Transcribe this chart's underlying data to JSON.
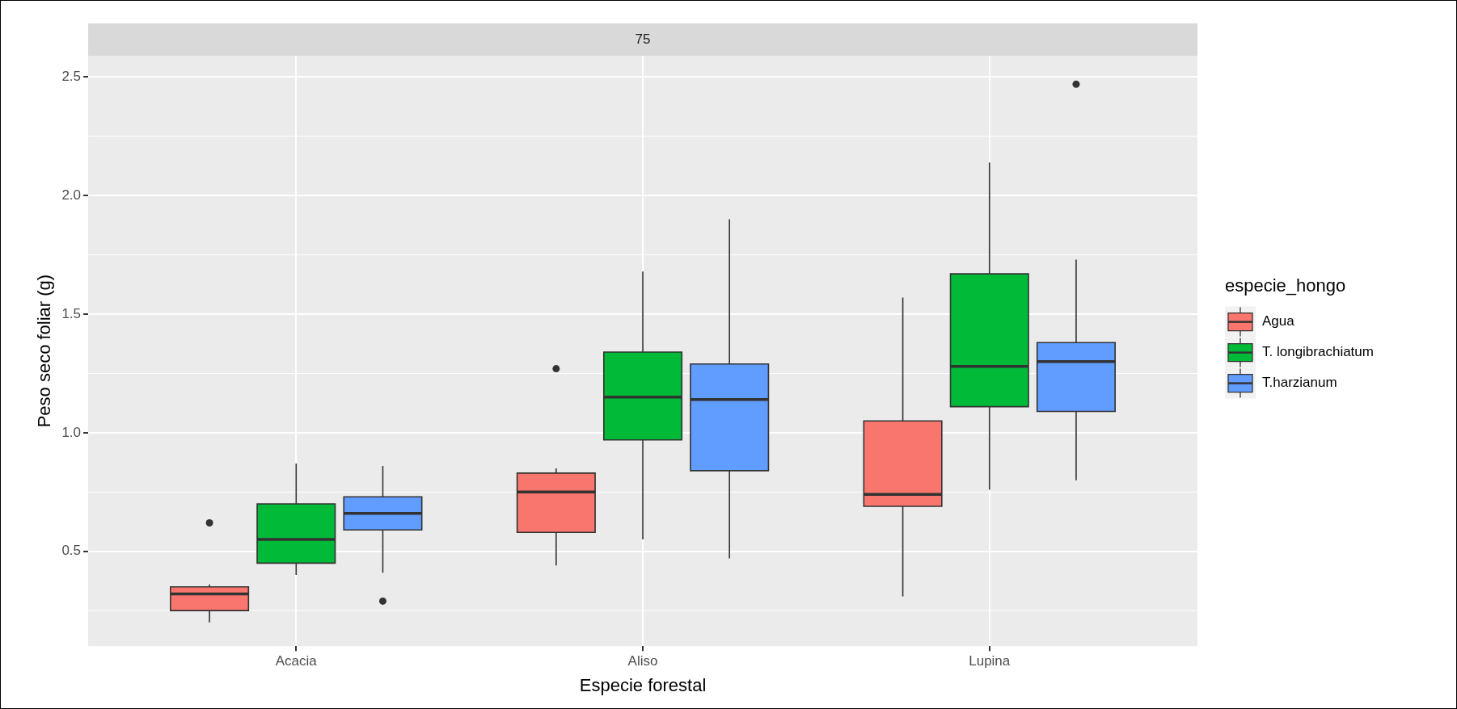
{
  "chart_data": {
    "type": "box",
    "subtitle": "75",
    "xlabel": "Especie forestal",
    "ylabel": "Peso seco foliar (g)",
    "legend_title": "especie_hongo",
    "categories": [
      "Acacia",
      "Aliso",
      "Lupina"
    ],
    "ylim": [
      0.1,
      2.59
    ],
    "yticks": [
      0.5,
      {
        "value": 1,
        "label": "1.0"
      },
      1.5,
      {
        "value": 2,
        "label": "2.0"
      },
      2.5
    ],
    "grid": true,
    "legend": "right",
    "series": [
      {
        "name": "Agua",
        "color": "#f8766d",
        "boxes": [
          {
            "low": 0.2,
            "q1": 0.25,
            "median": 0.32,
            "q3": 0.35,
            "high": 0.36,
            "outliers": [
              0.62
            ]
          },
          {
            "low": 0.44,
            "q1": 0.58,
            "median": 0.75,
            "q3": 0.83,
            "high": 0.85,
            "outliers": [
              1.27
            ]
          },
          {
            "low": 0.31,
            "q1": 0.69,
            "median": 0.74,
            "q3": 1.05,
            "high": 1.57
          }
        ]
      },
      {
        "name": "T. longibrachiatum",
        "color": "#00ba38",
        "boxes": [
          {
            "low": 0.4,
            "q1": 0.45,
            "median": 0.55,
            "q3": 0.7,
            "high": 0.87
          },
          {
            "low": 0.55,
            "q1": 0.97,
            "median": 1.15,
            "q3": 1.34,
            "high": 1.68
          },
          {
            "low": 0.76,
            "q1": 1.11,
            "median": 1.28,
            "q3": 1.67,
            "high": 2.14
          }
        ]
      },
      {
        "name": "T.harzianum",
        "color": "#619cff",
        "boxes": [
          {
            "low": 0.41,
            "q1": 0.59,
            "median": 0.66,
            "q3": 0.73,
            "high": 0.86,
            "outliers": [
              0.29
            ]
          },
          {
            "low": 0.47,
            "q1": 0.84,
            "median": 1.14,
            "q3": 1.29,
            "high": 1.9
          },
          {
            "low": 0.8,
            "q1": 1.09,
            "median": 1.3,
            "q3": 1.38,
            "high": 1.73,
            "outliers": [
              2.47
            ]
          }
        ]
      }
    ]
  }
}
